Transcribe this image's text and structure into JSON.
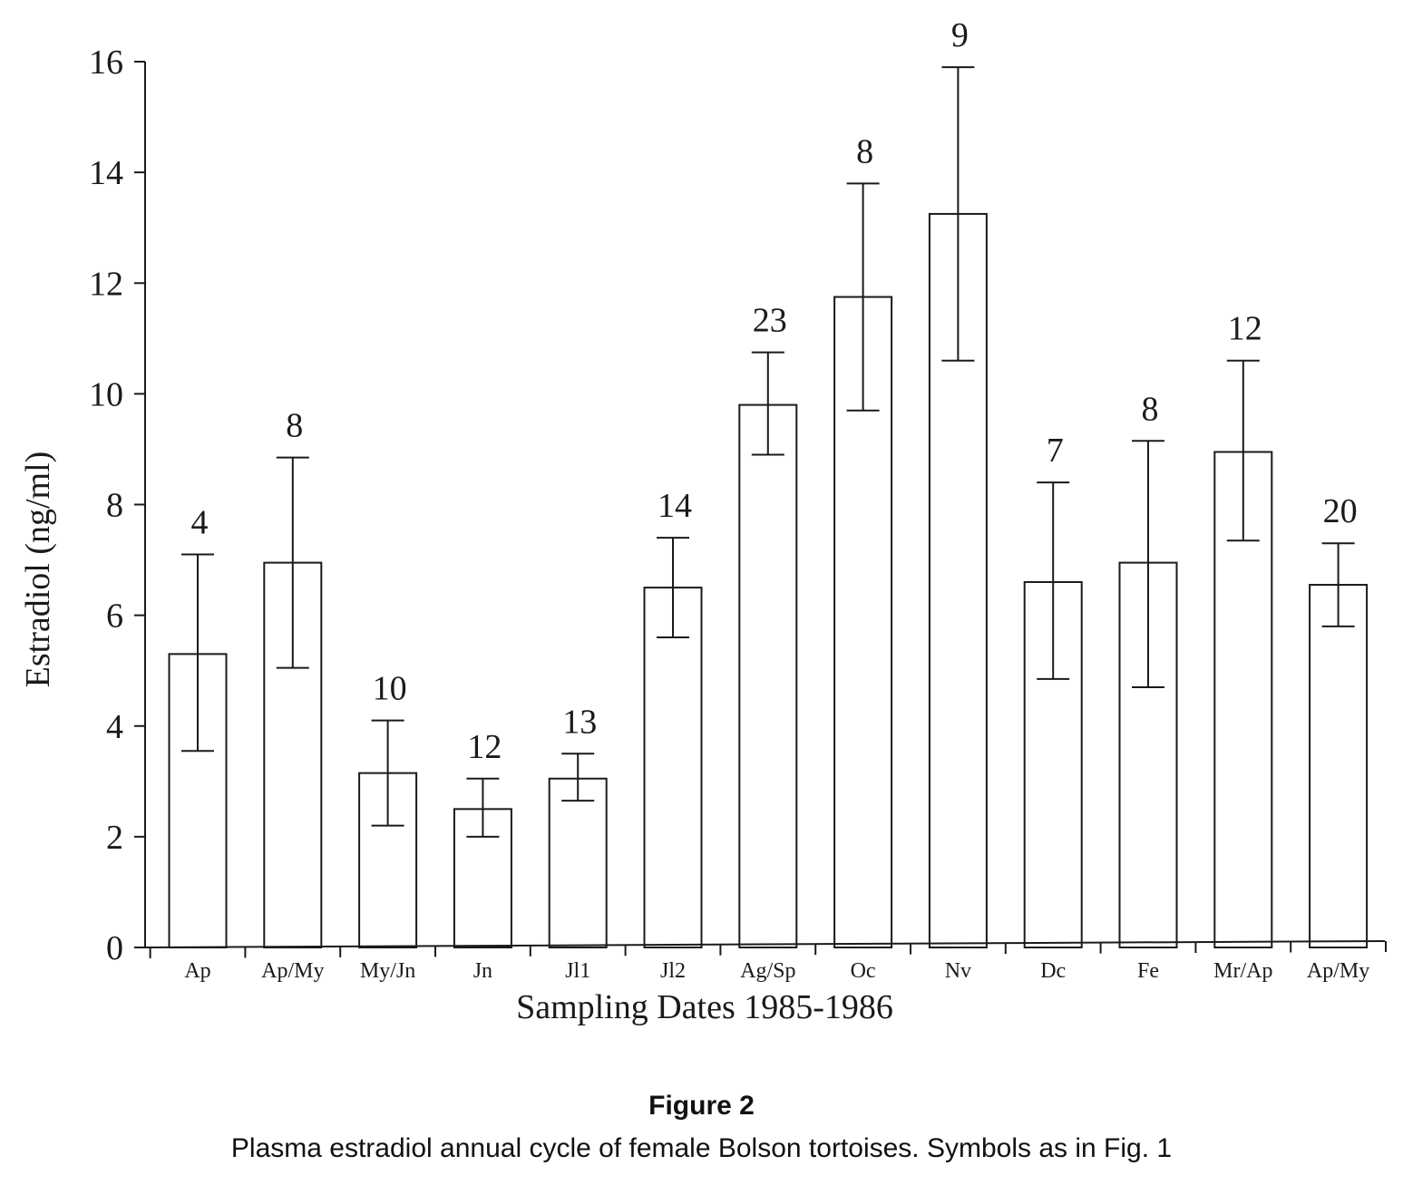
{
  "chart_data": {
    "type": "bar",
    "title": "",
    "xlabel": "Sampling Dates 1985-1986",
    "ylabel": "Estradiol (ng/ml)",
    "ylim": [
      0,
      16
    ],
    "yticks": [
      0,
      2,
      4,
      6,
      8,
      10,
      12,
      14,
      16
    ],
    "grid": false,
    "legend": "none",
    "error_bars": true,
    "categories": [
      "Ap",
      "Ap/My",
      "My/Jn",
      "Jn",
      "Jl1",
      "Jl2",
      "Ag/Sp",
      "Oc",
      "Nv",
      "Dc",
      "Fe",
      "Mr/Ap",
      "Ap/My"
    ],
    "values": [
      5.3,
      6.95,
      3.15,
      2.5,
      3.05,
      6.5,
      9.8,
      11.75,
      13.25,
      6.6,
      6.95,
      8.95,
      6.55
    ],
    "error_upper": [
      7.1,
      8.85,
      4.1,
      3.05,
      3.5,
      7.4,
      10.75,
      13.8,
      15.9,
      8.4,
      9.15,
      10.6,
      7.3
    ],
    "error_lower": [
      3.55,
      5.05,
      2.2,
      2.0,
      2.65,
      5.6,
      8.9,
      9.7,
      10.6,
      4.85,
      4.7,
      7.35,
      5.8
    ],
    "sample_sizes": [
      "4",
      "8",
      "10",
      "12",
      "13",
      "14",
      "23",
      "8",
      "9",
      "7",
      "8",
      "12",
      "20"
    ],
    "bar_color": "#ffffff",
    "line_color": "#1a1a1a"
  },
  "figure": {
    "label": "Figure 2",
    "caption": "Plasma estradiol annual cycle of female Bolson tortoises. Symbols as in Fig. 1"
  }
}
